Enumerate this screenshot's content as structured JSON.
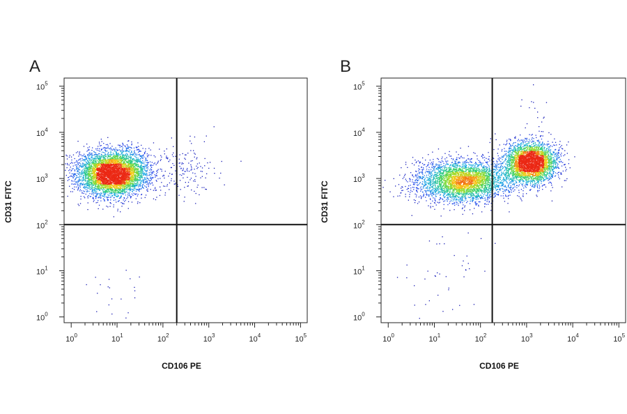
{
  "chart_data": [
    {
      "type": "scatter",
      "panel_label": "A",
      "xlabel": "CD106 PE",
      "ylabel": "CD31 FITC",
      "x_scale": "log",
      "y_scale": "log",
      "xlim": [
        0.7,
        140000
      ],
      "ylim": [
        0.75,
        150000
      ],
      "x_ticks": [
        {
          "base": "10",
          "exp": "0",
          "value": 1
        },
        {
          "base": "10",
          "exp": "1",
          "value": 10
        },
        {
          "base": "10",
          "exp": "2",
          "value": 100
        },
        {
          "base": "10",
          "exp": "3",
          "value": 1000
        },
        {
          "base": "10",
          "exp": "4",
          "value": 10000
        },
        {
          "base": "10",
          "exp": "5",
          "value": 100000
        }
      ],
      "y_ticks": [
        {
          "base": "10",
          "exp": "0",
          "value": 1
        },
        {
          "base": "10",
          "exp": "1",
          "value": 10
        },
        {
          "base": "10",
          "exp": "2",
          "value": 100
        },
        {
          "base": "10",
          "exp": "3",
          "value": 1000
        },
        {
          "base": "10",
          "exp": "4",
          "value": 10000
        },
        {
          "base": "10",
          "exp": "5",
          "value": 100000
        }
      ],
      "quadrant_gate": {
        "x": 200,
        "y": 100
      },
      "populations": [
        {
          "cx": 8,
          "cy": 1300,
          "sx": 0.38,
          "sy": 0.24,
          "n": 5200,
          "peak": "green"
        }
      ],
      "sparse_events": [
        {
          "x": 300,
          "y": 1500,
          "spread_x": 0.35,
          "spread_y": 0.3,
          "n": 160
        },
        {
          "x": 12,
          "y": 2,
          "spread_x": 0.4,
          "spread_y": 0.45,
          "n": 25
        }
      ]
    },
    {
      "type": "scatter",
      "panel_label": "B",
      "xlabel": "CD106 PE",
      "ylabel": "CD31 FITC",
      "x_scale": "log",
      "y_scale": "log",
      "xlim": [
        0.7,
        140000
      ],
      "ylim": [
        0.75,
        150000
      ],
      "x_ticks": [
        {
          "base": "10",
          "exp": "0",
          "value": 1
        },
        {
          "base": "10",
          "exp": "1",
          "value": 10
        },
        {
          "base": "10",
          "exp": "2",
          "value": 100
        },
        {
          "base": "10",
          "exp": "3",
          "value": 1000
        },
        {
          "base": "10",
          "exp": "4",
          "value": 10000
        },
        {
          "base": "10",
          "exp": "5",
          "value": 100000
        }
      ],
      "y_ticks": [
        {
          "base": "10",
          "exp": "0",
          "value": 1
        },
        {
          "base": "10",
          "exp": "1",
          "value": 10
        },
        {
          "base": "10",
          "exp": "2",
          "value": 100
        },
        {
          "base": "10",
          "exp": "3",
          "value": 1000
        },
        {
          "base": "10",
          "exp": "4",
          "value": 10000
        },
        {
          "base": "10",
          "exp": "5",
          "value": 100000
        }
      ],
      "quadrant_gate": {
        "x": 180,
        "y": 100
      },
      "populations": [
        {
          "cx": 40,
          "cy": 900,
          "sx": 0.5,
          "sy": 0.22,
          "n": 3600,
          "peak": "green"
        },
        {
          "cx": 1200,
          "cy": 2200,
          "sx": 0.28,
          "sy": 0.22,
          "n": 3400,
          "peak": "red"
        }
      ],
      "sparse_events": [
        {
          "x": 1500,
          "y": 35000,
          "spread_x": 0.2,
          "spread_y": 0.15,
          "n": 14
        },
        {
          "x": 20,
          "y": 8,
          "spread_x": 0.45,
          "spread_y": 0.5,
          "n": 40
        }
      ]
    }
  ]
}
